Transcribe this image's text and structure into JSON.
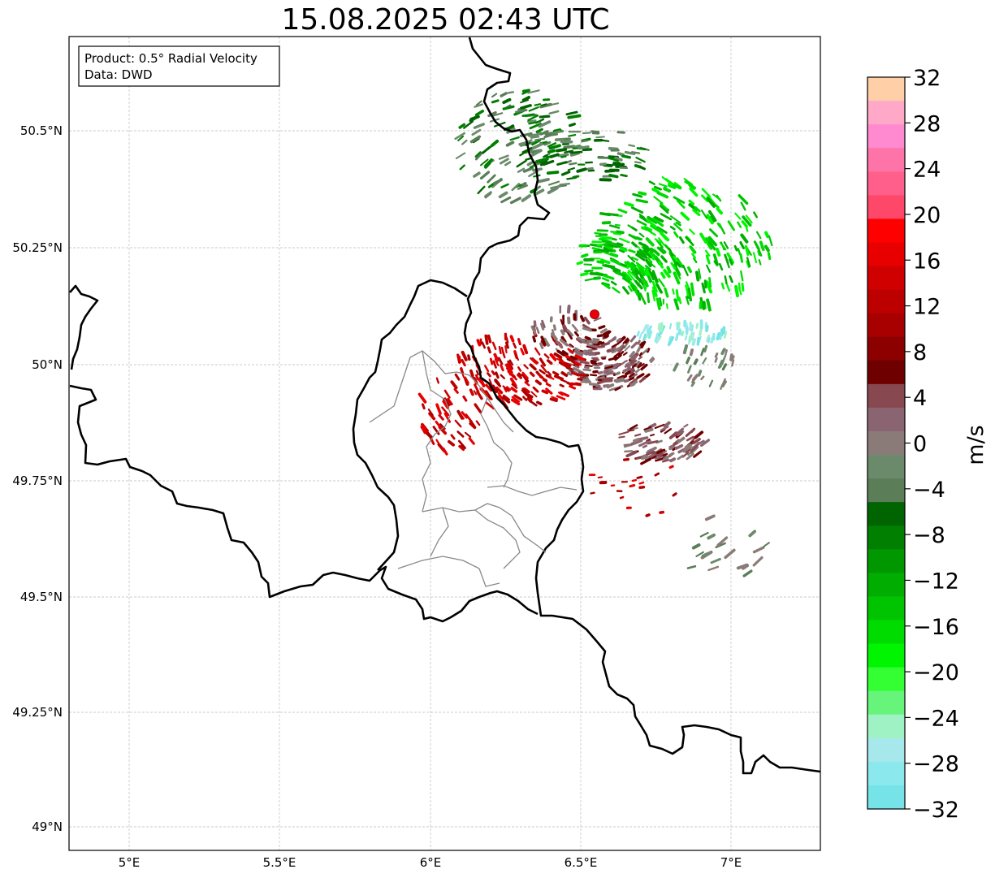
{
  "title": "15.08.2025 02:43 UTC",
  "info_box": {
    "line1": "Product: 0.5° Radial Velocity",
    "line2": "Data: DWD"
  },
  "map": {
    "lat_ticks": [
      "50.5°N",
      "50.25°N",
      "50°N",
      "49.75°N",
      "49.5°N",
      "49.25°N",
      "49°N"
    ],
    "lon_ticks": [
      "5°E",
      "5.5°E",
      "6°E",
      "6.5°E",
      "7°E"
    ],
    "lat_range": [
      48.95,
      50.7
    ],
    "lon_range": [
      4.8,
      7.3
    ],
    "radar_site_color": "#e8000b"
  },
  "colorbar": {
    "label": "m/s",
    "ticks": [
      "32",
      "28",
      "24",
      "20",
      "16",
      "12",
      "8",
      "4",
      "0",
      "−4",
      "−8",
      "−12",
      "−16",
      "−20",
      "−24",
      "−28",
      "−32"
    ],
    "range": [
      -32,
      32
    ],
    "colors": [
      "#ffcfa8",
      "#ffa8c8",
      "#ff8ad0",
      "#ff74a8",
      "#ff5f8a",
      "#ff4869",
      "#ff0000",
      "#e80000",
      "#d00000",
      "#bc0000",
      "#a80000",
      "#8c0000",
      "#6e0000",
      "#874850",
      "#8b6472",
      "#8b7b78",
      "#6b8a6b",
      "#5b7d58",
      "#006400",
      "#007f00",
      "#009700",
      "#00ad00",
      "#00c400",
      "#00dc00",
      "#00f500",
      "#33ff33",
      "#66f57a",
      "#9ff2c4",
      "#a7e8ec",
      "#8be8ec",
      "#75e3e8"
    ]
  }
}
